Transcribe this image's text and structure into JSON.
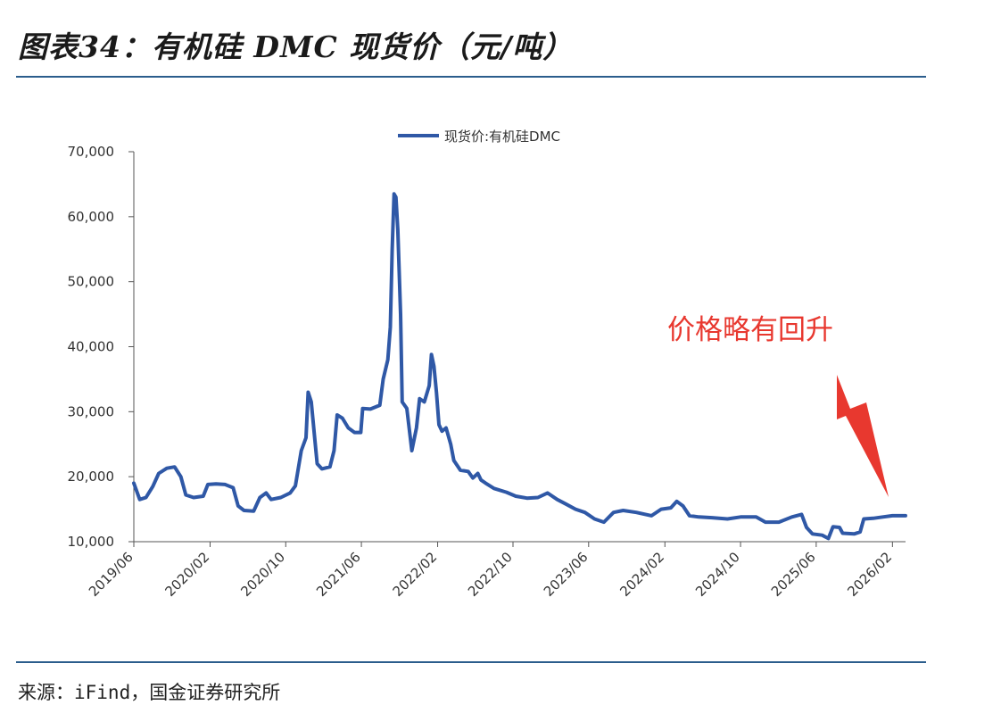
{
  "figure": {
    "title": "图表34：有机硅 DMC 现货价（元/吨）",
    "source": "来源：iFind，国金证券研究所"
  },
  "chart_data": {
    "type": "line",
    "title": "",
    "xlabel": "",
    "ylabel": "",
    "ylim": [
      10000,
      70000
    ],
    "y_ticks": [
      "10,000",
      "20,000",
      "30,000",
      "40,000",
      "50,000",
      "60,000",
      "70,000"
    ],
    "x_ticks": [
      "2019/06",
      "2020/02",
      "2020/10",
      "2021/06",
      "2022/02",
      "2022/10",
      "2023/06",
      "2024/02",
      "2024/10",
      "2025/06",
      "2026/02"
    ],
    "legend": {
      "position": "top-center",
      "label": "现货价:有机硅DMC"
    },
    "grid": false,
    "annotation": {
      "text": "价格略有回升",
      "color": "#e8382f",
      "arrow": true
    },
    "series": [
      {
        "name": "现货价:有机硅DMC",
        "color": "#2f58a6",
        "points": [
          [
            "2019-06-01",
            19000
          ],
          [
            "2019-06-20",
            16500
          ],
          [
            "2019-07-10",
            16800
          ],
          [
            "2019-08-01",
            18500
          ],
          [
            "2019-08-20",
            20500
          ],
          [
            "2019-09-15",
            21300
          ],
          [
            "2019-10-10",
            21500
          ],
          [
            "2019-10-30",
            20000
          ],
          [
            "2019-11-15",
            17200
          ],
          [
            "2019-12-10",
            16800
          ],
          [
            "2020-01-10",
            17000
          ],
          [
            "2020-01-25",
            18800
          ],
          [
            "2020-02-20",
            18900
          ],
          [
            "2020-03-20",
            18800
          ],
          [
            "2020-04-15",
            18300
          ],
          [
            "2020-05-01",
            15500
          ],
          [
            "2020-05-20",
            14800
          ],
          [
            "2020-06-20",
            14700
          ],
          [
            "2020-07-10",
            16800
          ],
          [
            "2020-07-30",
            17500
          ],
          [
            "2020-08-15",
            16500
          ],
          [
            "2020-09-15",
            16800
          ],
          [
            "2020-10-15",
            17500
          ],
          [
            "2020-11-01",
            18600
          ],
          [
            "2020-11-20",
            24000
          ],
          [
            "2020-12-05",
            26000
          ],
          [
            "2020-12-12",
            33000
          ],
          [
            "2020-12-22",
            31500
          ],
          [
            "2021-01-02",
            26000
          ],
          [
            "2021-01-10",
            22000
          ],
          [
            "2021-01-25",
            21200
          ],
          [
            "2021-02-20",
            21500
          ],
          [
            "2021-03-05",
            24000
          ],
          [
            "2021-03-15",
            29500
          ],
          [
            "2021-04-01",
            29000
          ],
          [
            "2021-04-20",
            27500
          ],
          [
            "2021-05-10",
            26800
          ],
          [
            "2021-05-30",
            26800
          ],
          [
            "2021-06-05",
            30500
          ],
          [
            "2021-06-30",
            30400
          ],
          [
            "2021-07-30",
            31000
          ],
          [
            "2021-08-10",
            35000
          ],
          [
            "2021-08-25",
            38000
          ],
          [
            "2021-09-02",
            43000
          ],
          [
            "2021-09-08",
            55000
          ],
          [
            "2021-09-14",
            63500
          ],
          [
            "2021-09-20",
            63000
          ],
          [
            "2021-09-26",
            58000
          ],
          [
            "2021-10-05",
            45000
          ],
          [
            "2021-10-10",
            31500
          ],
          [
            "2021-10-25",
            30500
          ],
          [
            "2021-11-05",
            26000
          ],
          [
            "2021-11-10",
            24000
          ],
          [
            "2021-11-25",
            27500
          ],
          [
            "2021-12-05",
            32000
          ],
          [
            "2021-12-20",
            31500
          ],
          [
            "2022-01-05",
            34000
          ],
          [
            "2022-01-12",
            38800
          ],
          [
            "2022-01-20",
            37000
          ],
          [
            "2022-01-28",
            33000
          ],
          [
            "2022-02-05",
            28000
          ],
          [
            "2022-02-15",
            27000
          ],
          [
            "2022-02-28",
            27500
          ],
          [
            "2022-03-15",
            25000
          ],
          [
            "2022-03-25",
            22500
          ],
          [
            "2022-04-15",
            21000
          ],
          [
            "2022-05-10",
            20800
          ],
          [
            "2022-05-25",
            19800
          ],
          [
            "2022-06-10",
            20500
          ],
          [
            "2022-06-20",
            19500
          ],
          [
            "2022-07-05",
            19000
          ],
          [
            "2022-08-01",
            18200
          ],
          [
            "2022-09-10",
            17600
          ],
          [
            "2022-10-10",
            17000
          ],
          [
            "2022-11-15",
            16700
          ],
          [
            "2022-12-20",
            16800
          ],
          [
            "2023-01-20",
            17500
          ],
          [
            "2023-02-20",
            16500
          ],
          [
            "2023-03-20",
            15800
          ],
          [
            "2023-04-20",
            15000
          ],
          [
            "2023-05-20",
            14500
          ],
          [
            "2023-06-20",
            13500
          ],
          [
            "2023-07-20",
            13000
          ],
          [
            "2023-08-20",
            14500
          ],
          [
            "2023-09-20",
            14800
          ],
          [
            "2023-11-01",
            14500
          ],
          [
            "2023-12-20",
            14000
          ],
          [
            "2024-01-20",
            15000
          ],
          [
            "2024-02-20",
            15200
          ],
          [
            "2024-03-10",
            16200
          ],
          [
            "2024-03-30",
            15500
          ],
          [
            "2024-04-20",
            14000
          ],
          [
            "2024-05-20",
            13800
          ],
          [
            "2024-07-01",
            13700
          ],
          [
            "2024-08-20",
            13500
          ],
          [
            "2024-10-01",
            13800
          ],
          [
            "2024-11-20",
            13800
          ],
          [
            "2024-12-20",
            13000
          ],
          [
            "2025-02-01",
            13000
          ],
          [
            "2025-03-15",
            13800
          ],
          [
            "2025-04-15",
            14200
          ],
          [
            "2025-05-01",
            12200
          ],
          [
            "2025-05-20",
            11200
          ],
          [
            "2025-06-20",
            11000
          ],
          [
            "2025-07-10",
            10500
          ],
          [
            "2025-07-25",
            12300
          ],
          [
            "2025-08-15",
            12200
          ],
          [
            "2025-08-25",
            11300
          ],
          [
            "2025-10-01",
            11200
          ],
          [
            "2025-10-20",
            11500
          ],
          [
            "2025-11-01",
            13500
          ],
          [
            "2025-12-01",
            13600
          ],
          [
            "2026-01-01",
            13800
          ],
          [
            "2026-02-01",
            14000
          ],
          [
            "2026-03-15",
            14000
          ]
        ]
      }
    ]
  }
}
